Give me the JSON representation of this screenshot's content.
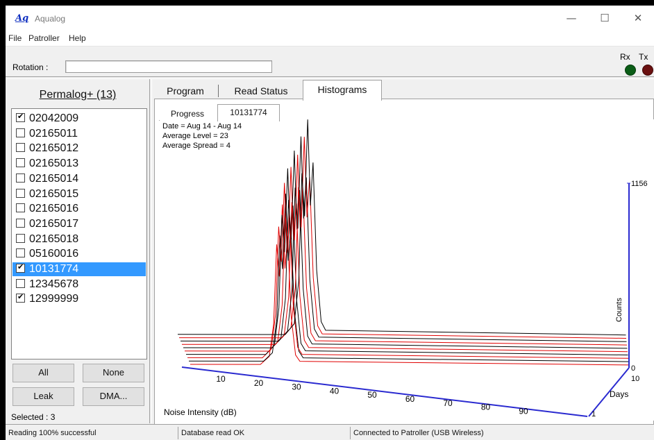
{
  "window": {
    "icon_text": "Aq",
    "title": "Aqualog"
  },
  "menu": [
    "File",
    "Patroller",
    "Help"
  ],
  "rotation": {
    "label": "Rotation :"
  },
  "indicators": {
    "rx": "Rx",
    "tx": "Tx",
    "rx_color": "#0b5d17",
    "tx_color": "#6a1010"
  },
  "left_panel": {
    "title": "Permalog+ (13)",
    "items": [
      {
        "id": "02042009",
        "checked": true,
        "selected": false
      },
      {
        "id": "02165011",
        "checked": false,
        "selected": false
      },
      {
        "id": "02165012",
        "checked": false,
        "selected": false
      },
      {
        "id": "02165013",
        "checked": false,
        "selected": false
      },
      {
        "id": "02165014",
        "checked": false,
        "selected": false
      },
      {
        "id": "02165015",
        "checked": false,
        "selected": false
      },
      {
        "id": "02165016",
        "checked": false,
        "selected": false
      },
      {
        "id": "02165017",
        "checked": false,
        "selected": false
      },
      {
        "id": "02165018",
        "checked": false,
        "selected": false
      },
      {
        "id": "05160016",
        "checked": false,
        "selected": false
      },
      {
        "id": "10131774",
        "checked": true,
        "selected": true
      },
      {
        "id": "12345678",
        "checked": false,
        "selected": false
      },
      {
        "id": "12999999",
        "checked": true,
        "selected": false
      }
    ],
    "buttons": {
      "all": "All",
      "none": "None",
      "leak": "Leak",
      "dma": "DMA..."
    },
    "selected_text": "Selected : 3"
  },
  "tabs": [
    "Program",
    "Read Status",
    "Histograms"
  ],
  "active_tab": "Histograms",
  "subtabs": [
    "Progress",
    "10131774"
  ],
  "active_subtab": "10131774",
  "histogram": {
    "date": "Date = Aug 14 - Aug 14",
    "avg_level": "Average Level = 23",
    "avg_spread": "Average Spread = 4"
  },
  "chart_data": {
    "type": "area",
    "xlabel": "Noise Intensity (dB)",
    "zlabel": "Days",
    "ylabel": "Counts",
    "x_ticks": [
      10,
      20,
      30,
      40,
      50,
      60,
      70,
      80,
      90
    ],
    "z_ticks": [
      1,
      10
    ],
    "y_ticks": [
      0,
      1156
    ],
    "ylim": [
      0,
      1156
    ],
    "series_colors": [
      "#000000",
      "#e00000"
    ],
    "series": [
      {
        "name": "",
        "peak_db": 29,
        "peak_counts": 1156
      },
      {
        "name": "",
        "peak_db": 28,
        "peak_counts": 1080
      },
      {
        "name": "",
        "peak_db": 27,
        "peak_counts": 1100
      },
      {
        "name": "",
        "peak_db": 26,
        "peak_counts": 1020
      },
      {
        "name": "",
        "peak_db": 25,
        "peak_counts": 1060
      },
      {
        "name": "",
        "peak_db": 24,
        "peak_counts": 990
      },
      {
        "name": "",
        "peak_db": 23,
        "peak_counts": 1000
      },
      {
        "name": "",
        "peak_db": 22,
        "peak_counts": 940
      },
      {
        "name": "",
        "peak_db": 22,
        "peak_counts": 900
      },
      {
        "name": "",
        "peak_db": 21,
        "peak_counts": 860
      }
    ]
  },
  "status": {
    "reading": "Reading 100% successful",
    "database": "Database read OK",
    "connection": "Connected to Patroller (USB Wireless)"
  }
}
